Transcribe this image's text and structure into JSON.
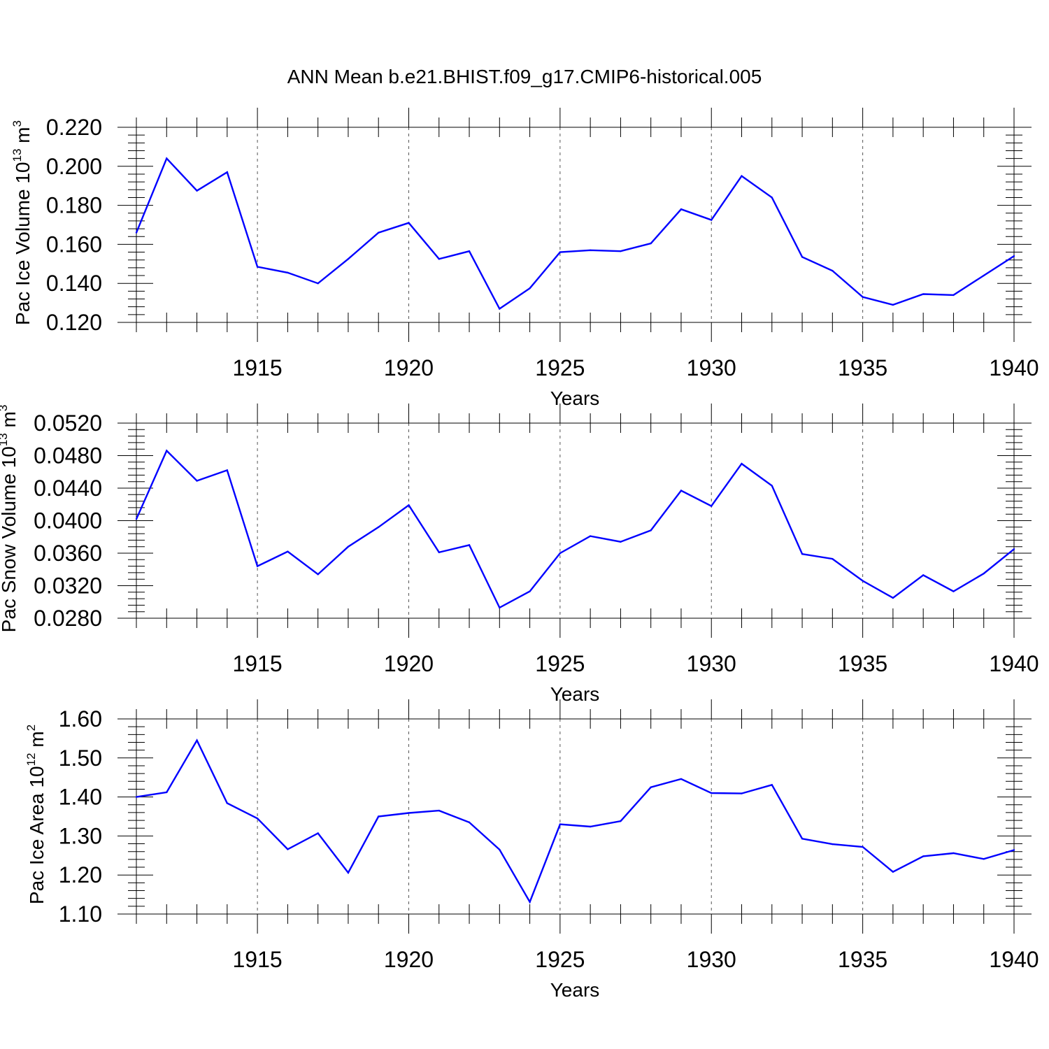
{
  "title": "ANN Mean b.e21.BHIST.f09_g17.CMIP6-historical.005",
  "chart_data": [
    {
      "type": "line",
      "ylabel": {
        "text": "Pac Ice Volume 10",
        "exp": "13",
        "unit": " m",
        "unit_exp": "3"
      },
      "xlabel": "Years",
      "xlim": [
        1911,
        1940
      ],
      "ylim": [
        0.12,
        0.22
      ],
      "yticks": [
        "0.120",
        "0.140",
        "0.160",
        "0.180",
        "0.200",
        "0.220"
      ],
      "ytick_values": [
        0.12,
        0.14,
        0.16,
        0.18,
        0.2,
        0.22
      ],
      "xticks": [
        "1915",
        "1920",
        "1925",
        "1930",
        "1935",
        "1940"
      ],
      "xtick_values": [
        1915,
        1920,
        1925,
        1930,
        1935,
        1940
      ],
      "grid": "vertical dashed at major x ticks",
      "color": "#0000ff",
      "series": [
        {
          "x": [
            1911,
            1912,
            1913,
            1914,
            1915,
            1916,
            1917,
            1918,
            1919,
            1920,
            1921,
            1922,
            1923,
            1924,
            1925,
            1926,
            1927,
            1928,
            1929,
            1930,
            1931,
            1932,
            1933,
            1934,
            1935,
            1936,
            1937,
            1938,
            1939,
            1940
          ],
          "values": [
            0.166,
            0.204,
            0.1875,
            0.197,
            0.1485,
            0.1455,
            0.14,
            0.1525,
            0.166,
            0.171,
            0.1525,
            0.1565,
            0.127,
            0.1375,
            0.156,
            0.157,
            0.1565,
            0.1605,
            0.178,
            0.1725,
            0.195,
            0.184,
            0.1535,
            0.1465,
            0.133,
            0.129,
            0.1345,
            0.134,
            0.144,
            0.154
          ]
        }
      ]
    },
    {
      "type": "line",
      "ylabel": {
        "text": "Pac Snow Volume 10",
        "exp": "13",
        "unit": " m",
        "unit_exp": "3"
      },
      "xlabel": "Years",
      "xlim": [
        1911,
        1940
      ],
      "ylim": [
        0.028,
        0.052
      ],
      "yticks": [
        "0.0280",
        "0.0320",
        "0.0360",
        "0.0400",
        "0.0440",
        "0.0480",
        "0.0520"
      ],
      "ytick_values": [
        0.028,
        0.032,
        0.036,
        0.04,
        0.044,
        0.048,
        0.052
      ],
      "xticks": [
        "1915",
        "1920",
        "1925",
        "1930",
        "1935",
        "1940"
      ],
      "xtick_values": [
        1915,
        1920,
        1925,
        1930,
        1935,
        1940
      ],
      "grid": "vertical dashed at major x ticks",
      "color": "#0000ff",
      "series": [
        {
          "x": [
            1911,
            1912,
            1913,
            1914,
            1915,
            1916,
            1917,
            1918,
            1919,
            1920,
            1921,
            1922,
            1923,
            1924,
            1925,
            1926,
            1927,
            1928,
            1929,
            1930,
            1931,
            1932,
            1933,
            1934,
            1935,
            1936,
            1937,
            1938,
            1939,
            1940
          ],
          "values": [
            0.0402,
            0.0486,
            0.0449,
            0.0462,
            0.0344,
            0.0362,
            0.0334,
            0.0368,
            0.0392,
            0.0419,
            0.0361,
            0.037,
            0.0293,
            0.0313,
            0.036,
            0.0381,
            0.0374,
            0.0388,
            0.0437,
            0.0418,
            0.047,
            0.0443,
            0.0359,
            0.0353,
            0.0326,
            0.0305,
            0.0333,
            0.0313,
            0.0335,
            0.0365
          ]
        }
      ]
    },
    {
      "type": "line",
      "ylabel": {
        "text": "Pac Ice Area 10",
        "exp": "12",
        "unit": " m",
        "unit_exp": "2"
      },
      "xlabel": "Years",
      "xlim": [
        1911,
        1940
      ],
      "ylim": [
        1.1,
        1.6
      ],
      "yticks": [
        "1.10",
        "1.20",
        "1.30",
        "1.40",
        "1.50",
        "1.60"
      ],
      "ytick_values": [
        1.1,
        1.2,
        1.3,
        1.4,
        1.5,
        1.6
      ],
      "xticks": [
        "1915",
        "1920",
        "1925",
        "1930",
        "1935",
        "1940"
      ],
      "xtick_values": [
        1915,
        1920,
        1925,
        1930,
        1935,
        1940
      ],
      "grid": "vertical dashed at major x ticks",
      "color": "#0000ff",
      "series": [
        {
          "x": [
            1911,
            1912,
            1913,
            1914,
            1915,
            1916,
            1917,
            1918,
            1919,
            1920,
            1921,
            1922,
            1923,
            1924,
            1925,
            1926,
            1927,
            1928,
            1929,
            1930,
            1931,
            1932,
            1933,
            1934,
            1935,
            1936,
            1937,
            1938,
            1939,
            1940
          ],
          "values": [
            1.4,
            1.412,
            1.545,
            1.384,
            1.345,
            1.266,
            1.307,
            1.206,
            1.35,
            1.359,
            1.365,
            1.335,
            1.265,
            1.131,
            1.33,
            1.324,
            1.338,
            1.425,
            1.446,
            1.41,
            1.409,
            1.431,
            1.293,
            1.279,
            1.272,
            1.208,
            1.248,
            1.256,
            1.241,
            1.264
          ]
        }
      ]
    }
  ]
}
